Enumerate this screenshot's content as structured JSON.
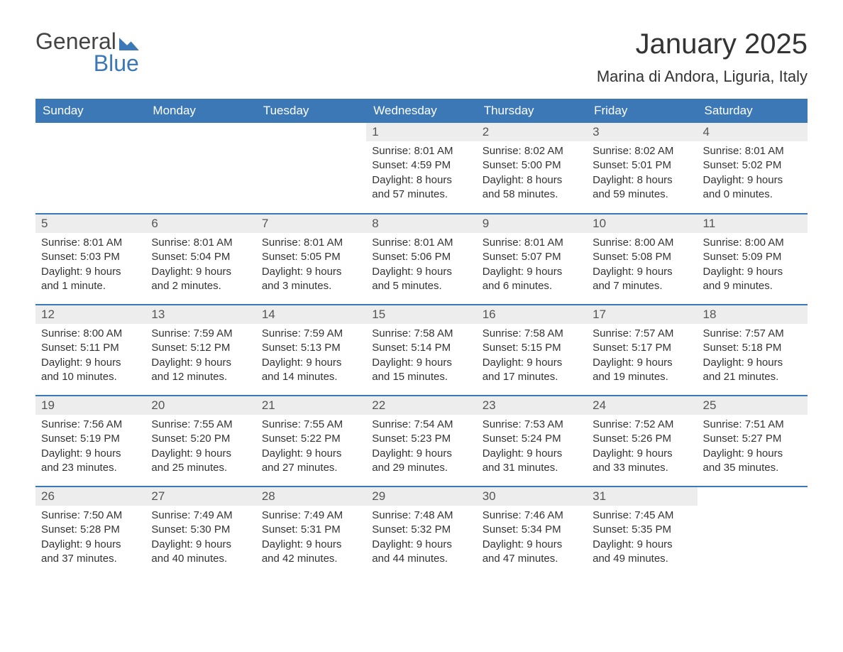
{
  "logo": {
    "word1": "General",
    "word2": "Blue"
  },
  "title": "January 2025",
  "location": "Marina di Andora, Liguria, Italy",
  "colors": {
    "brand": "#3b78b5",
    "header_text": "#ffffff",
    "daynum_bg": "#ededed",
    "text": "#333333",
    "bg": "#ffffff"
  },
  "weekdays": [
    "Sunday",
    "Monday",
    "Tuesday",
    "Wednesday",
    "Thursday",
    "Friday",
    "Saturday"
  ],
  "labels": {
    "sunrise": "Sunrise:",
    "sunset": "Sunset:",
    "daylight": "Daylight:"
  },
  "weeks": [
    [
      null,
      null,
      null,
      {
        "n": "1",
        "sr": "8:01 AM",
        "ss": "4:59 PM",
        "dl": "8 hours and 57 minutes."
      },
      {
        "n": "2",
        "sr": "8:02 AM",
        "ss": "5:00 PM",
        "dl": "8 hours and 58 minutes."
      },
      {
        "n": "3",
        "sr": "8:02 AM",
        "ss": "5:01 PM",
        "dl": "8 hours and 59 minutes."
      },
      {
        "n": "4",
        "sr": "8:01 AM",
        "ss": "5:02 PM",
        "dl": "9 hours and 0 minutes."
      }
    ],
    [
      {
        "n": "5",
        "sr": "8:01 AM",
        "ss": "5:03 PM",
        "dl": "9 hours and 1 minute."
      },
      {
        "n": "6",
        "sr": "8:01 AM",
        "ss": "5:04 PM",
        "dl": "9 hours and 2 minutes."
      },
      {
        "n": "7",
        "sr": "8:01 AM",
        "ss": "5:05 PM",
        "dl": "9 hours and 3 minutes."
      },
      {
        "n": "8",
        "sr": "8:01 AM",
        "ss": "5:06 PM",
        "dl": "9 hours and 5 minutes."
      },
      {
        "n": "9",
        "sr": "8:01 AM",
        "ss": "5:07 PM",
        "dl": "9 hours and 6 minutes."
      },
      {
        "n": "10",
        "sr": "8:00 AM",
        "ss": "5:08 PM",
        "dl": "9 hours and 7 minutes."
      },
      {
        "n": "11",
        "sr": "8:00 AM",
        "ss": "5:09 PM",
        "dl": "9 hours and 9 minutes."
      }
    ],
    [
      {
        "n": "12",
        "sr": "8:00 AM",
        "ss": "5:11 PM",
        "dl": "9 hours and 10 minutes."
      },
      {
        "n": "13",
        "sr": "7:59 AM",
        "ss": "5:12 PM",
        "dl": "9 hours and 12 minutes."
      },
      {
        "n": "14",
        "sr": "7:59 AM",
        "ss": "5:13 PM",
        "dl": "9 hours and 14 minutes."
      },
      {
        "n": "15",
        "sr": "7:58 AM",
        "ss": "5:14 PM",
        "dl": "9 hours and 15 minutes."
      },
      {
        "n": "16",
        "sr": "7:58 AM",
        "ss": "5:15 PM",
        "dl": "9 hours and 17 minutes."
      },
      {
        "n": "17",
        "sr": "7:57 AM",
        "ss": "5:17 PM",
        "dl": "9 hours and 19 minutes."
      },
      {
        "n": "18",
        "sr": "7:57 AM",
        "ss": "5:18 PM",
        "dl": "9 hours and 21 minutes."
      }
    ],
    [
      {
        "n": "19",
        "sr": "7:56 AM",
        "ss": "5:19 PM",
        "dl": "9 hours and 23 minutes."
      },
      {
        "n": "20",
        "sr": "7:55 AM",
        "ss": "5:20 PM",
        "dl": "9 hours and 25 minutes."
      },
      {
        "n": "21",
        "sr": "7:55 AM",
        "ss": "5:22 PM",
        "dl": "9 hours and 27 minutes."
      },
      {
        "n": "22",
        "sr": "7:54 AM",
        "ss": "5:23 PM",
        "dl": "9 hours and 29 minutes."
      },
      {
        "n": "23",
        "sr": "7:53 AM",
        "ss": "5:24 PM",
        "dl": "9 hours and 31 minutes."
      },
      {
        "n": "24",
        "sr": "7:52 AM",
        "ss": "5:26 PM",
        "dl": "9 hours and 33 minutes."
      },
      {
        "n": "25",
        "sr": "7:51 AM",
        "ss": "5:27 PM",
        "dl": "9 hours and 35 minutes."
      }
    ],
    [
      {
        "n": "26",
        "sr": "7:50 AM",
        "ss": "5:28 PM",
        "dl": "9 hours and 37 minutes."
      },
      {
        "n": "27",
        "sr": "7:49 AM",
        "ss": "5:30 PM",
        "dl": "9 hours and 40 minutes."
      },
      {
        "n": "28",
        "sr": "7:49 AM",
        "ss": "5:31 PM",
        "dl": "9 hours and 42 minutes."
      },
      {
        "n": "29",
        "sr": "7:48 AM",
        "ss": "5:32 PM",
        "dl": "9 hours and 44 minutes."
      },
      {
        "n": "30",
        "sr": "7:46 AM",
        "ss": "5:34 PM",
        "dl": "9 hours and 47 minutes."
      },
      {
        "n": "31",
        "sr": "7:45 AM",
        "ss": "5:35 PM",
        "dl": "9 hours and 49 minutes."
      },
      null
    ]
  ]
}
